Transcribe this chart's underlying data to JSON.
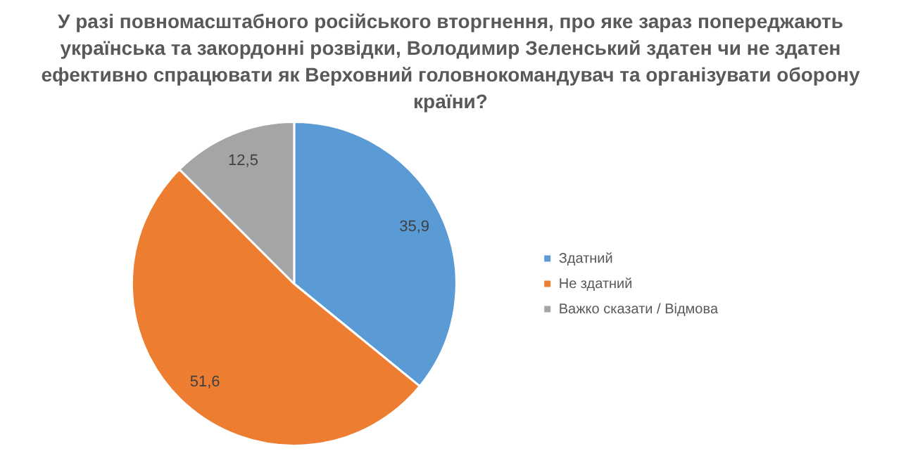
{
  "chart_data": {
    "type": "pie",
    "title": "У разі повномасштабного російського вторгнення, про яке зараз попереджають українська та закордонні розвідки, Володимир Зеленський здатен чи не здатен ефективно спрацювати як Верховний головнокомандувач та організувати оборону країни?",
    "categories": [
      "Здатний",
      "Не здатний",
      "Важко сказати / Відмова"
    ],
    "values": [
      35.9,
      51.6,
      12.5
    ],
    "value_labels": [
      "35,9",
      "51,6",
      "12,5"
    ],
    "colors": [
      "#5b9bd5",
      "#ed7d31",
      "#a5a5a5"
    ],
    "legend": "right"
  }
}
